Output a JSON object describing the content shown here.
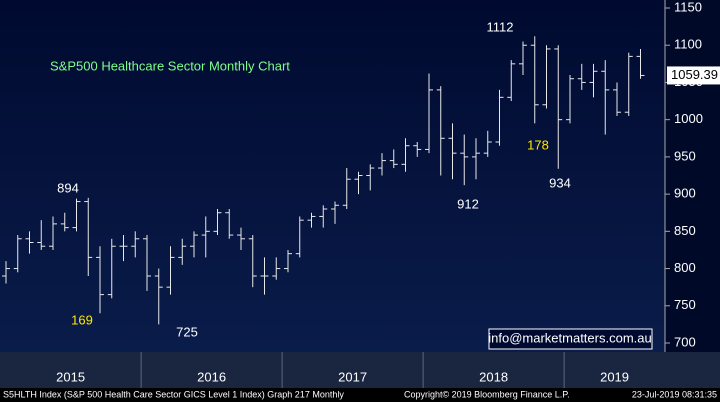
{
  "chart_data": {
    "type": "ohlc",
    "title": "S&P500 Healthcare Sector Monthly Chart",
    "years": [
      "2015",
      "2016",
      "2017",
      "2018",
      "2019"
    ],
    "open": [
      790,
      800,
      840,
      835,
      830,
      860,
      855,
      890,
      815,
      765,
      830,
      830,
      840,
      790,
      775,
      815,
      830,
      845,
      850,
      875,
      845,
      840,
      790,
      790,
      800,
      820,
      865,
      870,
      880,
      885,
      920,
      925,
      935,
      945,
      940,
      965,
      960,
      1040,
      975,
      955,
      950,
      955,
      970,
      1030,
      1075,
      1100,
      1020,
      1095,
      1000,
      1055,
      1050,
      1065,
      1040,
      1010,
      1085
    ],
    "high": [
      810,
      845,
      850,
      865,
      870,
      875,
      894,
      895,
      830,
      840,
      845,
      850,
      845,
      800,
      830,
      840,
      850,
      870,
      880,
      880,
      855,
      845,
      815,
      815,
      825,
      870,
      875,
      885,
      890,
      935,
      930,
      940,
      955,
      960,
      975,
      970,
      1062,
      1045,
      995,
      980,
      975,
      985,
      1040,
      1080,
      1105,
      1112,
      1100,
      1100,
      1060,
      1075,
      1075,
      1080,
      1050,
      1090,
      1095
    ],
    "low": [
      780,
      795,
      820,
      825,
      825,
      850,
      850,
      790,
      740,
      760,
      810,
      815,
      770,
      725,
      765,
      805,
      815,
      815,
      845,
      840,
      825,
      775,
      765,
      785,
      795,
      815,
      855,
      855,
      860,
      880,
      900,
      905,
      925,
      935,
      930,
      950,
      955,
      925,
      920,
      912,
      920,
      950,
      965,
      1025,
      1060,
      995,
      1015,
      934,
      995,
      1040,
      1030,
      980,
      1005,
      1005,
      1055
    ],
    "close": [
      800,
      840,
      835,
      830,
      860,
      855,
      890,
      815,
      765,
      830,
      830,
      840,
      790,
      775,
      815,
      830,
      845,
      850,
      875,
      845,
      840,
      790,
      790,
      800,
      820,
      865,
      870,
      880,
      885,
      920,
      925,
      935,
      945,
      940,
      965,
      960,
      1040,
      975,
      955,
      950,
      955,
      970,
      1030,
      1075,
      1100,
      1020,
      1095,
      1000,
      1055,
      1050,
      1065,
      1040,
      1010,
      1085,
      1059.39
    ],
    "annotations": [
      "894",
      "169",
      "725",
      "912",
      "1112",
      "178",
      "934"
    ],
    "contact": "info@marketmatters.com.au",
    "footer_left": "S5HLTH Index (S&P 500 Health Care Sector GICS Level 1 Index) Graph 217  Monthly",
    "footer_mid": "Copyright© 2019 Bloomberg Finance L.P.",
    "footer_right": "23-Jul-2019 08:31:35",
    "ylim": [
      700,
      1150
    ],
    "yticks": [
      700,
      750,
      800,
      850,
      900,
      950,
      1000,
      1050,
      1100,
      1150
    ],
    "color": "#e8e8e8"
  }
}
